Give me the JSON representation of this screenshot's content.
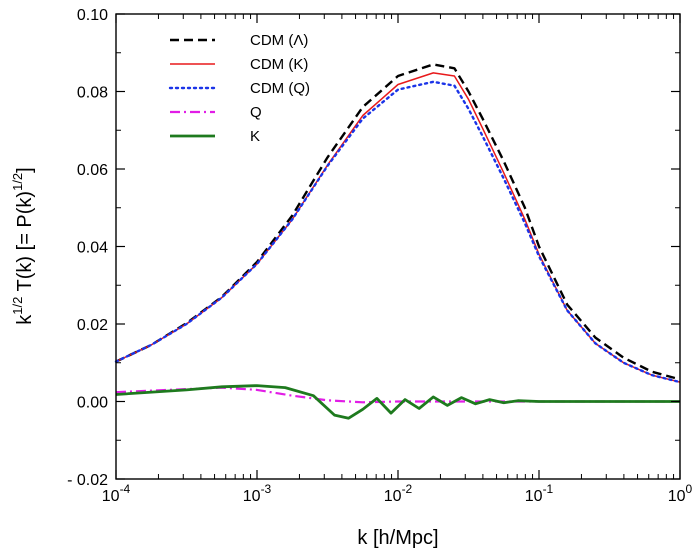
{
  "chart_data": {
    "type": "line",
    "title": "",
    "xlabel": "k [h/Mpc]",
    "ylabel": {
      "a": "k",
      "a_sup": "1/2",
      "b": " T(k)  [= P(k)",
      "b_sup": "1/2",
      "c": "]"
    },
    "xscale": "log",
    "xlim": [
      0.0001,
      1
    ],
    "ylim": [
      -0.02,
      0.1
    ],
    "grid": false,
    "legend_position": "top-left",
    "x_ticks": [
      {
        "base": "10",
        "exp": "-4"
      },
      {
        "base": "10",
        "exp": "-3"
      },
      {
        "base": "10",
        "exp": "-2"
      },
      {
        "base": "10",
        "exp": "-1"
      },
      {
        "base": "10",
        "exp": "0"
      }
    ],
    "y_ticks": [
      "- 0.02",
      "0.00",
      "0.02",
      "0.04",
      "0.06",
      "0.08",
      "0.10"
    ],
    "series": [
      {
        "name": "CDM (Λ)",
        "color": "#000000",
        "dash": "dashed",
        "points": [
          [
            -4.0,
            0.0103
          ],
          [
            -3.75,
            0.0146
          ],
          [
            -3.5,
            0.0202
          ],
          [
            -3.25,
            0.027
          ],
          [
            -3.0,
            0.036
          ],
          [
            -2.75,
            0.048
          ],
          [
            -2.5,
            0.063
          ],
          [
            -2.25,
            0.076
          ],
          [
            -2.0,
            0.084
          ],
          [
            -1.75,
            0.087
          ],
          [
            -1.6,
            0.086
          ],
          [
            -1.5,
            0.08
          ],
          [
            -1.4,
            0.073
          ],
          [
            -1.25,
            0.062
          ],
          [
            -1.1,
            0.05
          ],
          [
            -1.0,
            0.04
          ],
          [
            -0.8,
            0.025
          ],
          [
            -0.6,
            0.0165
          ],
          [
            -0.4,
            0.0113
          ],
          [
            -0.2,
            0.0077
          ],
          [
            0.0,
            0.0057
          ]
        ]
      },
      {
        "name": "CDM (K)",
        "color": "#e8191b",
        "dash": "solid",
        "points": [
          [
            -4.0,
            0.0103
          ],
          [
            -3.75,
            0.0146
          ],
          [
            -3.5,
            0.02
          ],
          [
            -3.25,
            0.0268
          ],
          [
            -3.0,
            0.0355
          ],
          [
            -2.75,
            0.047
          ],
          [
            -2.5,
            0.061
          ],
          [
            -2.25,
            0.0738
          ],
          [
            -2.0,
            0.0818
          ],
          [
            -1.75,
            0.0848
          ],
          [
            -1.6,
            0.084
          ],
          [
            -1.5,
            0.078
          ],
          [
            -1.4,
            0.0705
          ],
          [
            -1.25,
            0.059
          ],
          [
            -1.1,
            0.047
          ],
          [
            -1.0,
            0.038
          ],
          [
            -0.8,
            0.0235
          ],
          [
            -0.6,
            0.015
          ],
          [
            -0.4,
            0.01
          ],
          [
            -0.2,
            0.0068
          ],
          [
            0.0,
            0.005
          ]
        ]
      },
      {
        "name": "CDM (Q)",
        "color": "#1b34e8",
        "dash": "dotted",
        "points": [
          [
            -4.0,
            0.0103
          ],
          [
            -3.75,
            0.0146
          ],
          [
            -3.5,
            0.02
          ],
          [
            -3.25,
            0.0268
          ],
          [
            -3.0,
            0.0355
          ],
          [
            -2.75,
            0.047
          ],
          [
            -2.5,
            0.0608
          ],
          [
            -2.25,
            0.073
          ],
          [
            -2.0,
            0.0805
          ],
          [
            -1.75,
            0.0825
          ],
          [
            -1.6,
            0.0815
          ],
          [
            -1.5,
            0.0755
          ],
          [
            -1.4,
            0.0685
          ],
          [
            -1.25,
            0.0575
          ],
          [
            -1.1,
            0.046
          ],
          [
            -1.0,
            0.0375
          ],
          [
            -0.8,
            0.0235
          ],
          [
            -0.6,
            0.015
          ],
          [
            -0.4,
            0.01
          ],
          [
            -0.2,
            0.0068
          ],
          [
            0.0,
            0.005
          ]
        ]
      },
      {
        "name": "Q",
        "color": "#e11de6",
        "dash": "dash-dot",
        "points": [
          [
            -4.0,
            0.0024
          ],
          [
            -3.5,
            0.0032
          ],
          [
            -3.25,
            0.0036
          ],
          [
            -3.0,
            0.003
          ],
          [
            -2.75,
            0.0015
          ],
          [
            -2.5,
            0.0003
          ],
          [
            -2.25,
            -0.0002
          ],
          [
            -2.0,
            0.0
          ],
          [
            -1.5,
            0.0
          ],
          [
            -1.0,
            0.0
          ],
          [
            0.0,
            0.0
          ]
        ]
      },
      {
        "name": "K",
        "color": "#1e7a1e",
        "dash": "solid",
        "points": [
          [
            -4.0,
            0.0018
          ],
          [
            -3.5,
            0.003
          ],
          [
            -3.25,
            0.0038
          ],
          [
            -3.0,
            0.0041
          ],
          [
            -2.8,
            0.0036
          ],
          [
            -2.6,
            0.0015
          ],
          [
            -2.45,
            -0.0035
          ],
          [
            -2.35,
            -0.0043
          ],
          [
            -2.25,
            -0.002
          ],
          [
            -2.15,
            0.0008
          ],
          [
            -2.05,
            -0.003
          ],
          [
            -1.95,
            0.0005
          ],
          [
            -1.85,
            -0.0018
          ],
          [
            -1.75,
            0.0012
          ],
          [
            -1.65,
            -0.001
          ],
          [
            -1.55,
            0.001
          ],
          [
            -1.45,
            -0.0006
          ],
          [
            -1.35,
            0.0005
          ],
          [
            -1.25,
            -0.0003
          ],
          [
            -1.15,
            0.0002
          ],
          [
            -1.0,
            0.0
          ],
          [
            0.0,
            0.0
          ]
        ]
      }
    ]
  }
}
